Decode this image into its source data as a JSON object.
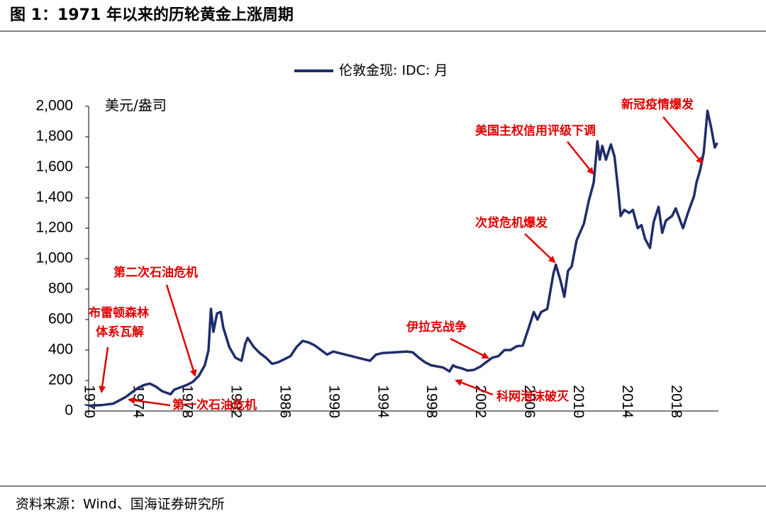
{
  "chart_data": {
    "type": "line",
    "title": "图 1：1971 年以来的历轮黄金上涨周期",
    "y_label": "美元/盎司",
    "source": "资料来源：Wind、国海证券研究所",
    "x": [
      1970,
      1971,
      1972,
      1973,
      1973.5,
      1974,
      1974.5,
      1975,
      1975.5,
      1976,
      1976.7,
      1977,
      1978,
      1978.5,
      1979,
      1979.5,
      1979.8,
      1980,
      1980.2,
      1980.5,
      1980.8,
      1981,
      1981.5,
      1982,
      1982.5,
      1982.8,
      1983,
      1983.5,
      1984,
      1984.5,
      1985,
      1985.5,
      1986,
      1986.5,
      1987,
      1987.5,
      1988,
      1988.5,
      1989,
      1989.5,
      1990,
      1990.5,
      1991,
      1991.5,
      1992,
      1992.5,
      1993,
      1993.5,
      1994,
      1995,
      1996,
      1996.5,
      1997,
      1997.5,
      1998,
      1999,
      1999.5,
      1999.8,
      2000,
      2000.5,
      2001,
      2001.5,
      2002,
      2002.5,
      2003,
      2003.5,
      2004,
      2004.5,
      2005,
      2005.5,
      2006,
      2006.4,
      2006.7,
      2007,
      2007.5,
      2008,
      2008.2,
      2008.6,
      2008.9,
      2009.2,
      2009.5,
      2009.9,
      2010.5,
      2010.9,
      2011.3,
      2011.6,
      2011.8,
      2012,
      2012.3,
      2012.7,
      2013,
      2013.3,
      2013.5,
      2013.8,
      2014.2,
      2014.5,
      2014.9,
      2015.2,
      2015.5,
      2015.9,
      2016.2,
      2016.6,
      2016.9,
      2017.2,
      2017.7,
      2018,
      2018.6,
      2019,
      2019.5,
      2019.7,
      2020,
      2020.3,
      2020.6,
      2020.9,
      2021.2,
      2021.4
    ],
    "series": [
      {
        "name": "伦敦金现: IDC: 月",
        "color": "#1f2d6b",
        "values": [
          35,
          38,
          48,
          90,
          120,
          150,
          170,
          180,
          160,
          130,
          110,
          140,
          170,
          190,
          230,
          300,
          400,
          670,
          520,
          640,
          650,
          550,
          420,
          350,
          330,
          440,
          480,
          420,
          380,
          350,
          310,
          320,
          340,
          360,
          420,
          460,
          450,
          430,
          400,
          370,
          390,
          380,
          370,
          360,
          350,
          340,
          330,
          370,
          380,
          385,
          390,
          385,
          350,
          320,
          300,
          285,
          260,
          300,
          290,
          280,
          265,
          270,
          290,
          320,
          350,
          360,
          400,
          400,
          425,
          430,
          550,
          650,
          600,
          650,
          670,
          900,
          960,
          850,
          750,
          920,
          950,
          1120,
          1230,
          1380,
          1500,
          1770,
          1650,
          1740,
          1650,
          1750,
          1670,
          1450,
          1280,
          1320,
          1300,
          1320,
          1200,
          1220,
          1130,
          1070,
          1240,
          1340,
          1170,
          1250,
          1280,
          1330,
          1200,
          1300,
          1410,
          1500,
          1580,
          1700,
          1970,
          1860,
          1730,
          1760
        ]
      }
    ],
    "xlim": [
      1970,
      2021.5
    ],
    "xticks": [
      1970,
      1974,
      1978,
      1982,
      1986,
      1990,
      1994,
      1998,
      2002,
      2006,
      2010,
      2014,
      2018
    ],
    "ylim": [
      0,
      2000
    ],
    "yticks": [
      0,
      200,
      400,
      600,
      800,
      {
        "value": 1000,
        "label": "1,000"
      },
      {
        "value": 1200,
        "label": "1,200"
      },
      {
        "value": 1400,
        "label": "1,400"
      },
      {
        "value": 1600,
        "label": "1,600"
      },
      {
        "value": 1800,
        "label": "1,800"
      },
      {
        "value": 2000,
        "label": "2,000"
      }
    ],
    "annotations": [
      [
        "布雷顿森林",
        "体系瓦解"
      ],
      [
        "第二次石油危机"
      ],
      [
        "第一次石油危机"
      ],
      [
        "伊拉克战争"
      ],
      [
        "科网泡沫破灭"
      ],
      [
        "次贷危机爆发"
      ],
      [
        "美国主权信用评级下调"
      ],
      [
        "新冠疫情爆发"
      ]
    ]
  }
}
